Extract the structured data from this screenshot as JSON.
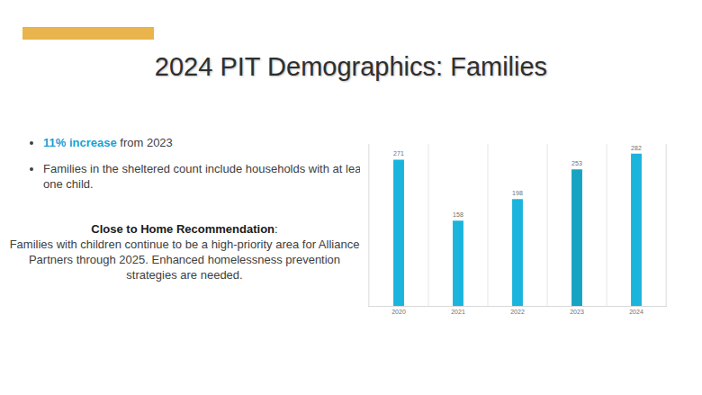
{
  "title": "2024 PIT Demographics: Families",
  "bullets": [
    {
      "emphasis": "11% increase",
      "text": "from 2023"
    },
    {
      "text": "Families in the sheltered count include households with at least one child."
    }
  ],
  "recommendation": {
    "heading": "Close to Home Recommendation",
    "text": "Families with children continue to be a high-priority area for Alliance Partners through 2025.  Enhanced homelessness prevention strategies are needed."
  },
  "chart_data": {
    "type": "bar",
    "categories": [
      "2020",
      "2021",
      "2022",
      "2023",
      "2024"
    ],
    "values": [
      271,
      158,
      198,
      253,
      282
    ],
    "colors": [
      "#1ab4dc",
      "#1ab4dc",
      "#1ab4dc",
      "#17a3c2",
      "#1ab4dc"
    ],
    "ylim": [
      0,
      300
    ],
    "data_labels": true,
    "tick_labels": "x",
    "grid": true
  }
}
